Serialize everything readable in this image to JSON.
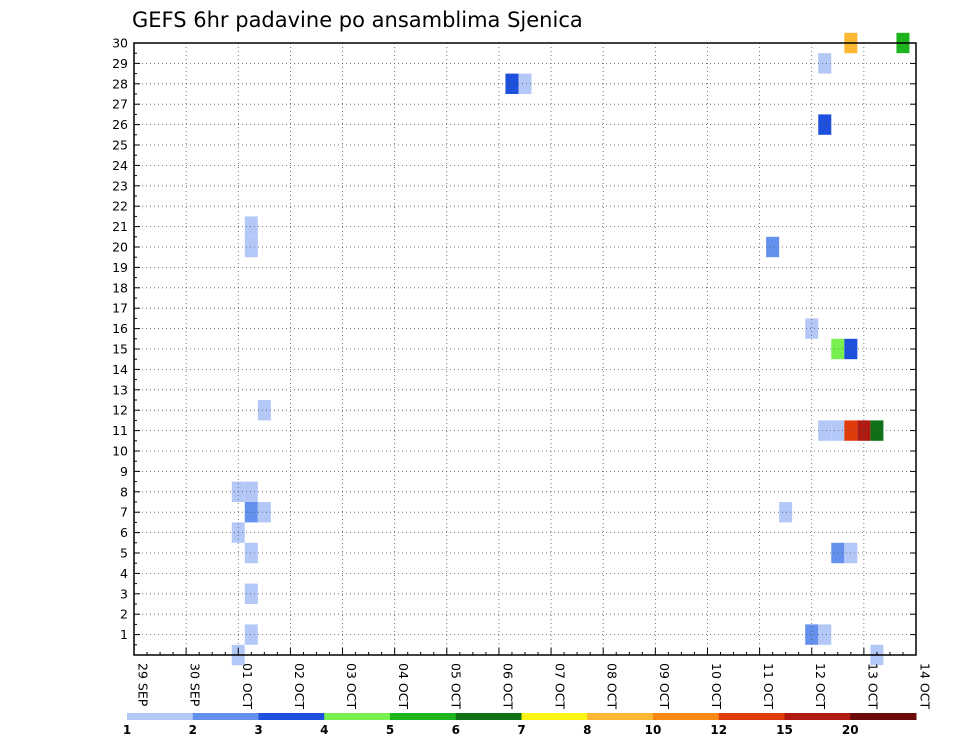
{
  "chart_data": {
    "type": "heatmap",
    "title": "GEFS 6hr padavine po ansamblima Sjenica",
    "xlabel": "",
    "ylabel": "",
    "x_ticks": [
      "29 SEP",
      "30 SEP",
      "01 OCT",
      "02 OCT",
      "03 OCT",
      "04 OCT",
      "05 OCT",
      "06 OCT",
      "07 OCT",
      "08 OCT",
      "09 OCT",
      "10 OCT",
      "11 OCT",
      "12 OCT",
      "13 OCT",
      "14 OCT"
    ],
    "y_ticks": [
      "1",
      "2",
      "3",
      "4",
      "5",
      "6",
      "7",
      "8",
      "9",
      "10",
      "11",
      "12",
      "13",
      "14",
      "15",
      "16",
      "17",
      "18",
      "19",
      "20",
      "21",
      "22",
      "23",
      "24",
      "25",
      "26",
      "27",
      "28",
      "29",
      "30"
    ],
    "xlim": [
      0,
      15
    ],
    "ylim": [
      0,
      30
    ],
    "grid": true,
    "colorbar": {
      "labels": [
        "1",
        "2",
        "3",
        "4",
        "5",
        "6",
        "7",
        "8",
        "10",
        "12",
        "15",
        "20"
      ],
      "colors": [
        "#b4c8f8",
        "#6490ee",
        "#1e50de",
        "#78f050",
        "#1eb41e",
        "#107018",
        "#fcf414",
        "#fcb832",
        "#f88a14",
        "#e03c0a",
        "#b01a10",
        "#6c0a0a"
      ]
    },
    "cells": [
      {
        "day": 2.0,
        "member": 0,
        "value": 1.5
      },
      {
        "day": 2.25,
        "member": 1,
        "value": 1.5
      },
      {
        "day": 2.25,
        "member": 3,
        "value": 1.5
      },
      {
        "day": 2.25,
        "member": 5,
        "value": 1.5
      },
      {
        "day": 2.0,
        "member": 6,
        "value": 1.5
      },
      {
        "day": 2.25,
        "member": 7,
        "value": 2.5
      },
      {
        "day": 2.5,
        "member": 7,
        "value": 1.5
      },
      {
        "day": 2.0,
        "member": 8,
        "value": 1.5
      },
      {
        "day": 2.25,
        "member": 8,
        "value": 1.5
      },
      {
        "day": 2.5,
        "member": 12,
        "value": 1.5
      },
      {
        "day": 2.25,
        "member": 20,
        "value": 1.5
      },
      {
        "day": 2.25,
        "member": 21,
        "value": 1.5
      },
      {
        "day": 7.25,
        "member": 28,
        "value": 3.5
      },
      {
        "day": 7.5,
        "member": 28,
        "value": 1.5
      },
      {
        "day": 12.25,
        "member": 20,
        "value": 2.5
      },
      {
        "day": 12.5,
        "member": 7,
        "value": 1.5
      },
      {
        "day": 13.0,
        "member": 1,
        "value": 2.5
      },
      {
        "day": 13.25,
        "member": 1,
        "value": 1.5
      },
      {
        "day": 13.5,
        "member": 5,
        "value": 2.5
      },
      {
        "day": 13.75,
        "member": 5,
        "value": 1.5
      },
      {
        "day": 13.25,
        "member": 11,
        "value": 1.5
      },
      {
        "day": 13.5,
        "member": 11,
        "value": 1.5
      },
      {
        "day": 13.75,
        "member": 11,
        "value": 13
      },
      {
        "day": 14.0,
        "member": 11,
        "value": 17
      },
      {
        "day": 14.25,
        "member": 11,
        "value": 6.5
      },
      {
        "day": 13.5,
        "member": 15,
        "value": 4.5
      },
      {
        "day": 13.75,
        "member": 15,
        "value": 3.5
      },
      {
        "day": 13.0,
        "member": 16,
        "value": 1.5
      },
      {
        "day": 13.25,
        "member": 26,
        "value": 3.5
      },
      {
        "day": 13.25,
        "member": 29,
        "value": 1.5
      },
      {
        "day": 13.75,
        "member": 30,
        "value": 9
      },
      {
        "day": 14.75,
        "member": 30,
        "value": 5.5
      },
      {
        "day": 14.25,
        "member": 0,
        "value": 1.5
      }
    ]
  }
}
